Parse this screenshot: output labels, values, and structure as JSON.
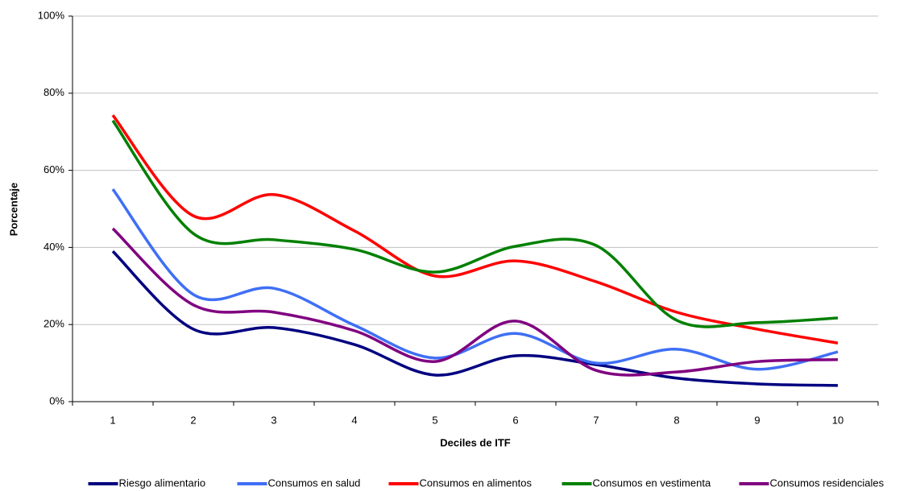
{
  "chart_data": {
    "type": "line",
    "x_label": "Deciles de ITF",
    "y_label": "Porcentaje",
    "categories": [
      "1",
      "2",
      "3",
      "4",
      "5",
      "6",
      "7",
      "8",
      "9",
      "10"
    ],
    "ylim": [
      0,
      100
    ],
    "yticks": [
      {
        "value": 0,
        "label": "0%"
      },
      {
        "value": 20,
        "label": "20%"
      },
      {
        "value": 40,
        "label": "40%"
      },
      {
        "value": 60,
        "label": "60%"
      },
      {
        "value": 80,
        "label": "80%"
      },
      {
        "value": 100,
        "label": "100%"
      }
    ],
    "grid": true,
    "smooth": true,
    "legend": "bottom",
    "series": [
      {
        "name": "Riesgo alimentario",
        "color": "#000080",
        "values": [
          39.0,
          18.8,
          19.2,
          14.8,
          6.9,
          11.9,
          9.6,
          6.1,
          4.6,
          4.2
        ]
      },
      {
        "name": "Consumos en salud",
        "color": "#3f6ff5",
        "values": [
          55.1,
          27.8,
          29.4,
          19.8,
          11.3,
          17.7,
          10.0,
          13.6,
          8.4,
          12.9
        ]
      },
      {
        "name": "Consumos en alimentos",
        "color": "#ff0000",
        "values": [
          74.3,
          48.2,
          53.7,
          44.3,
          32.6,
          36.5,
          31.1,
          23.2,
          18.8,
          15.2
        ]
      },
      {
        "name": "Consumos en vestimenta",
        "color": "#008000",
        "values": [
          72.9,
          43.6,
          42.0,
          39.5,
          33.6,
          40.3,
          40.5,
          21.1,
          20.5,
          21.7
        ]
      },
      {
        "name": "Consumos residenciales",
        "color": "#800080",
        "values": [
          44.9,
          25.1,
          23.2,
          18.4,
          10.4,
          20.9,
          8.1,
          7.7,
          10.4,
          10.9
        ]
      }
    ]
  }
}
